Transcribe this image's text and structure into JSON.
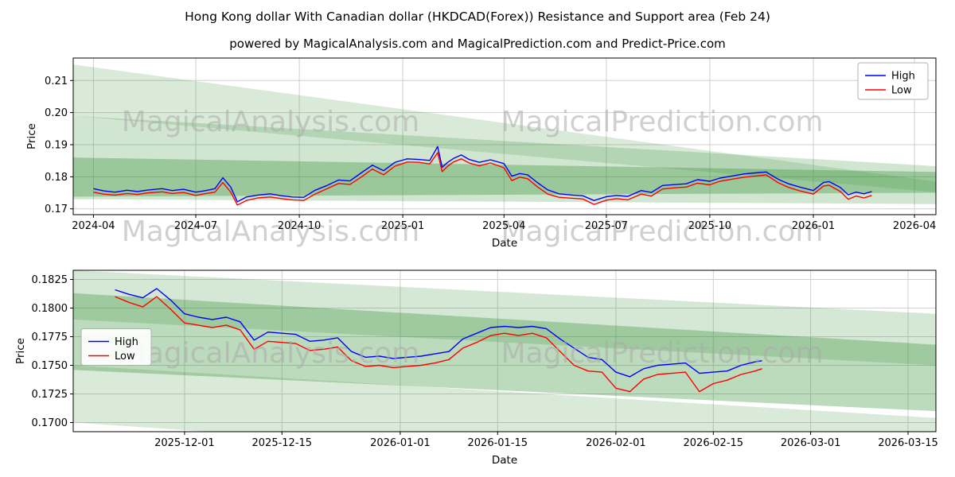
{
  "title": "Hong Kong dollar With Canadian dollar (HKDCAD(Forex)) Resistance and Support area (Feb 24)",
  "subtitle": "powered by MagicalAnalysis.com and MagicalPrediction.com and Predict-Price.com",
  "watermarks": {
    "left": "MagicalAnalysis.com",
    "right": "MagicalPrediction.com"
  },
  "colors": {
    "high": "#0000ff",
    "low": "#ff0000",
    "band": "#2e8b2e",
    "grid": "#cfcfcf",
    "watermark": "#aaaaaa",
    "axis": "#000000"
  },
  "chart_data": [
    {
      "type": "line",
      "xlabel": "Date",
      "ylabel": "Price",
      "x_range": [
        "2024-03-14",
        "2026-04-20"
      ],
      "y_range": [
        0.1682,
        0.217
      ],
      "grid": true,
      "legend_position": "upper right",
      "x_ticks": [
        {
          "v": "2024-04-01",
          "label": "2024-04"
        },
        {
          "v": "2024-07-01",
          "label": "2024-07"
        },
        {
          "v": "2024-10-01",
          "label": "2024-10"
        },
        {
          "v": "2025-01-01",
          "label": "2025-01"
        },
        {
          "v": "2025-04-01",
          "label": "2025-04"
        },
        {
          "v": "2025-07-01",
          "label": "2025-07"
        },
        {
          "v": "2025-10-01",
          "label": "2025-10"
        },
        {
          "v": "2026-01-01",
          "label": "2026-01"
        },
        {
          "v": "2026-04-01",
          "label": "2026-04"
        }
      ],
      "y_ticks": [
        {
          "v": 0.17,
          "label": "0.17"
        },
        {
          "v": 0.18,
          "label": "0.18"
        },
        {
          "v": 0.19,
          "label": "0.19"
        },
        {
          "v": 0.2,
          "label": "0.20"
        },
        {
          "v": 0.21,
          "label": "0.21"
        }
      ],
      "legend": [
        {
          "label": "High",
          "color": "#0000ff"
        },
        {
          "label": "Low",
          "color": "#ff0000"
        }
      ],
      "series": [
        {
          "name": "High",
          "color": "#0000ff",
          "x": [
            "2024-04-01",
            "2024-04-10",
            "2024-04-20",
            "2024-05-01",
            "2024-05-10",
            "2024-05-20",
            "2024-06-01",
            "2024-06-10",
            "2024-06-20",
            "2024-07-01",
            "2024-07-10",
            "2024-07-18",
            "2024-07-25",
            "2024-08-01",
            "2024-08-07",
            "2024-08-15",
            "2024-08-25",
            "2024-09-05",
            "2024-09-15",
            "2024-09-25",
            "2024-10-05",
            "2024-10-15",
            "2024-10-25",
            "2024-11-05",
            "2024-11-15",
            "2024-11-25",
            "2024-12-05",
            "2024-12-15",
            "2024-12-25",
            "2025-01-05",
            "2025-01-15",
            "2025-01-25",
            "2025-02-01",
            "2025-02-05",
            "2025-02-10",
            "2025-02-15",
            "2025-02-22",
            "2025-03-01",
            "2025-03-10",
            "2025-03-20",
            "2025-04-01",
            "2025-04-08",
            "2025-04-15",
            "2025-04-22",
            "2025-05-01",
            "2025-05-10",
            "2025-05-20",
            "2025-06-01",
            "2025-06-10",
            "2025-06-20",
            "2025-07-01",
            "2025-07-10",
            "2025-07-20",
            "2025-08-01",
            "2025-08-10",
            "2025-08-20",
            "2025-09-01",
            "2025-09-10",
            "2025-09-20",
            "2025-10-01",
            "2025-10-10",
            "2025-10-20",
            "2025-11-01",
            "2025-11-10",
            "2025-11-20",
            "2025-12-01",
            "2025-12-10",
            "2025-12-20",
            "2026-01-01",
            "2026-01-10",
            "2026-01-15",
            "2026-01-25",
            "2026-02-01",
            "2026-02-08",
            "2026-02-15",
            "2026-02-22"
          ],
          "values": [
            0.1763,
            0.1756,
            0.1752,
            0.1758,
            0.1754,
            0.1759,
            0.1763,
            0.1757,
            0.1761,
            0.1752,
            0.1757,
            0.1763,
            0.1797,
            0.1768,
            0.1722,
            0.1737,
            0.1743,
            0.1747,
            0.1741,
            0.1737,
            0.1736,
            0.1758,
            0.1772,
            0.179,
            0.1787,
            0.1812,
            0.1836,
            0.1819,
            0.1845,
            0.1856,
            0.1854,
            0.1851,
            0.1894,
            0.183,
            0.1845,
            0.1857,
            0.1868,
            0.1854,
            0.1845,
            0.1853,
            0.1841,
            0.1802,
            0.181,
            0.1806,
            0.1781,
            0.1759,
            0.1747,
            0.1743,
            0.1741,
            0.1726,
            0.1738,
            0.1742,
            0.1739,
            0.1757,
            0.1751,
            0.1773,
            0.1776,
            0.1778,
            0.1791,
            0.1786,
            0.1796,
            0.1802,
            0.1809,
            0.1812,
            0.1815,
            0.1792,
            0.1778,
            0.1768,
            0.1757,
            0.1782,
            0.1785,
            0.1767,
            0.1744,
            0.1752,
            0.1747,
            0.1754
          ]
        },
        {
          "name": "Low",
          "color": "#ff0000",
          "x": [
            "2024-04-01",
            "2024-04-10",
            "2024-04-20",
            "2024-05-01",
            "2024-05-10",
            "2024-05-20",
            "2024-06-01",
            "2024-06-10",
            "2024-06-20",
            "2024-07-01",
            "2024-07-10",
            "2024-07-18",
            "2024-07-25",
            "2024-08-01",
            "2024-08-07",
            "2024-08-15",
            "2024-08-25",
            "2024-09-05",
            "2024-09-15",
            "2024-09-25",
            "2024-10-05",
            "2024-10-15",
            "2024-10-25",
            "2024-11-05",
            "2024-11-15",
            "2024-11-25",
            "2024-12-05",
            "2024-12-15",
            "2024-12-25",
            "2025-01-05",
            "2025-01-15",
            "2025-01-25",
            "2025-02-01",
            "2025-02-05",
            "2025-02-10",
            "2025-02-15",
            "2025-02-22",
            "2025-03-01",
            "2025-03-10",
            "2025-03-20",
            "2025-04-01",
            "2025-04-08",
            "2025-04-15",
            "2025-04-22",
            "2025-05-01",
            "2025-05-10",
            "2025-05-20",
            "2025-06-01",
            "2025-06-10",
            "2025-06-20",
            "2025-07-01",
            "2025-07-10",
            "2025-07-20",
            "2025-08-01",
            "2025-08-10",
            "2025-08-20",
            "2025-09-01",
            "2025-09-10",
            "2025-09-20",
            "2025-10-01",
            "2025-10-10",
            "2025-10-20",
            "2025-11-01",
            "2025-11-10",
            "2025-11-20",
            "2025-12-01",
            "2025-12-10",
            "2025-12-20",
            "2026-01-01",
            "2026-01-10",
            "2026-01-15",
            "2026-01-25",
            "2026-02-01",
            "2026-02-08",
            "2026-02-15",
            "2026-02-22"
          ],
          "values": [
            0.1752,
            0.1746,
            0.1743,
            0.1748,
            0.1745,
            0.175,
            0.1753,
            0.1748,
            0.1751,
            0.1742,
            0.1748,
            0.1752,
            0.1782,
            0.1752,
            0.1712,
            0.1726,
            0.1734,
            0.1737,
            0.1732,
            0.1728,
            0.1726,
            0.1746,
            0.1762,
            0.1779,
            0.1776,
            0.1799,
            0.1824,
            0.1806,
            0.1833,
            0.1846,
            0.1845,
            0.184,
            0.1875,
            0.1816,
            0.1833,
            0.1846,
            0.1856,
            0.1843,
            0.1834,
            0.1843,
            0.1828,
            0.1788,
            0.1799,
            0.1794,
            0.1768,
            0.1746,
            0.1736,
            0.1733,
            0.1731,
            0.1714,
            0.1727,
            0.1732,
            0.1728,
            0.1746,
            0.174,
            0.1762,
            0.1766,
            0.1768,
            0.178,
            0.1775,
            0.1786,
            0.1792,
            0.1799,
            0.1802,
            0.1806,
            0.1781,
            0.1767,
            0.1756,
            0.1746,
            0.1771,
            0.1774,
            0.1754,
            0.173,
            0.174,
            0.1734,
            0.1742
          ]
        }
      ],
      "bands": [
        {
          "opacity": 0.18,
          "points": [
            [
              "2024-03-14",
              0.215
            ],
            [
              "2026-04-20",
              0.1785
            ],
            [
              "2026-04-20",
              0.1752
            ],
            [
              "2024-03-14",
              0.199
            ]
          ]
        },
        {
          "opacity": 0.22,
          "points": [
            [
              "2024-03-14",
              0.199
            ],
            [
              "2026-04-20",
              0.1833
            ],
            [
              "2026-04-20",
              0.1715
            ],
            [
              "2024-03-14",
              0.173
            ]
          ]
        },
        {
          "opacity": 0.33,
          "points": [
            [
              "2024-03-14",
              0.186
            ],
            [
              "2026-04-20",
              0.1815
            ],
            [
              "2026-04-20",
              0.175
            ],
            [
              "2024-03-14",
              0.1738
            ]
          ]
        }
      ]
    },
    {
      "type": "line",
      "xlabel": "Date",
      "ylabel": "Price",
      "x_range": [
        "2025-11-15",
        "2026-03-19"
      ],
      "y_range": [
        0.1692,
        0.1833
      ],
      "grid": true,
      "legend_position": "center left",
      "x_ticks": [
        {
          "v": "2025-12-01",
          "label": "2025-12-01"
        },
        {
          "v": "2025-12-15",
          "label": "2025-12-15"
        },
        {
          "v": "2026-01-01",
          "label": "2026-01-01"
        },
        {
          "v": "2026-01-15",
          "label": "2026-01-15"
        },
        {
          "v": "2026-02-01",
          "label": "2026-02-01"
        },
        {
          "v": "2026-02-15",
          "label": "2026-02-15"
        },
        {
          "v": "2026-03-01",
          "label": "2026-03-01"
        },
        {
          "v": "2026-03-15",
          "label": "2026-03-15"
        }
      ],
      "y_ticks": [
        {
          "v": 0.17,
          "label": "0.1700"
        },
        {
          "v": 0.1725,
          "label": "0.1725"
        },
        {
          "v": 0.175,
          "label": "0.1750"
        },
        {
          "v": 0.1775,
          "label": "0.1775"
        },
        {
          "v": 0.18,
          "label": "0.1800"
        },
        {
          "v": 0.1825,
          "label": "0.1825"
        }
      ],
      "legend": [
        {
          "label": "High",
          "color": "#0000ff"
        },
        {
          "label": "Low",
          "color": "#ff0000"
        }
      ],
      "series": [
        {
          "name": "High",
          "color": "#0000ff",
          "x": [
            "2025-11-21",
            "2025-11-23",
            "2025-11-25",
            "2025-11-27",
            "2025-11-29",
            "2025-12-01",
            "2025-12-03",
            "2025-12-05",
            "2025-12-07",
            "2025-12-09",
            "2025-12-11",
            "2025-12-13",
            "2025-12-15",
            "2025-12-17",
            "2025-12-19",
            "2025-12-21",
            "2025-12-23",
            "2025-12-25",
            "2025-12-27",
            "2025-12-29",
            "2025-12-31",
            "2026-01-02",
            "2026-01-04",
            "2026-01-06",
            "2026-01-08",
            "2026-01-10",
            "2026-01-12",
            "2026-01-14",
            "2026-01-16",
            "2026-01-18",
            "2026-01-20",
            "2026-01-22",
            "2026-01-24",
            "2026-01-26",
            "2026-01-28",
            "2026-01-30",
            "2026-02-01",
            "2026-02-03",
            "2026-02-05",
            "2026-02-07",
            "2026-02-09",
            "2026-02-11",
            "2026-02-13",
            "2026-02-15",
            "2026-02-17",
            "2026-02-19",
            "2026-02-21",
            "2026-02-22"
          ],
          "values": [
            0.1816,
            0.1812,
            0.1809,
            0.1817,
            0.1807,
            0.1795,
            0.1792,
            0.179,
            0.1792,
            0.1788,
            0.1772,
            0.1779,
            0.1778,
            0.1777,
            0.1771,
            0.1772,
            0.1774,
            0.1762,
            0.1757,
            0.1758,
            0.1756,
            0.1757,
            0.1758,
            0.176,
            0.1762,
            0.1773,
            0.1778,
            0.1783,
            0.1784,
            0.1783,
            0.1784,
            0.1782,
            0.1773,
            0.1765,
            0.1757,
            0.1755,
            0.1744,
            0.174,
            0.1747,
            0.175,
            0.1751,
            0.1752,
            0.1743,
            0.1744,
            0.1745,
            0.175,
            0.1753,
            0.1754
          ]
        },
        {
          "name": "Low",
          "color": "#ff0000",
          "x": [
            "2025-11-21",
            "2025-11-23",
            "2025-11-25",
            "2025-11-27",
            "2025-11-29",
            "2025-12-01",
            "2025-12-03",
            "2025-12-05",
            "2025-12-07",
            "2025-12-09",
            "2025-12-11",
            "2025-12-13",
            "2025-12-15",
            "2025-12-17",
            "2025-12-19",
            "2025-12-21",
            "2025-12-23",
            "2025-12-25",
            "2025-12-27",
            "2025-12-29",
            "2025-12-31",
            "2026-01-02",
            "2026-01-04",
            "2026-01-06",
            "2026-01-08",
            "2026-01-10",
            "2026-01-12",
            "2026-01-14",
            "2026-01-16",
            "2026-01-18",
            "2026-01-20",
            "2026-01-22",
            "2026-01-24",
            "2026-01-26",
            "2026-01-28",
            "2026-01-30",
            "2026-02-01",
            "2026-02-03",
            "2026-02-05",
            "2026-02-07",
            "2026-02-09",
            "2026-02-11",
            "2026-02-13",
            "2026-02-15",
            "2026-02-17",
            "2026-02-19",
            "2026-02-21",
            "2026-02-22"
          ],
          "values": [
            0.181,
            0.1805,
            0.1801,
            0.181,
            0.1799,
            0.1787,
            0.1785,
            0.1783,
            0.1785,
            0.1781,
            0.1764,
            0.1771,
            0.177,
            0.1769,
            0.1763,
            0.1764,
            0.1766,
            0.1754,
            0.1749,
            0.175,
            0.1748,
            0.1749,
            0.175,
            0.1752,
            0.1755,
            0.1765,
            0.177,
            0.1776,
            0.1778,
            0.1776,
            0.1778,
            0.1774,
            0.1762,
            0.175,
            0.1745,
            0.1744,
            0.173,
            0.1727,
            0.1738,
            0.1742,
            0.1743,
            0.1744,
            0.1727,
            0.1734,
            0.1737,
            0.1742,
            0.1745,
            0.1747
          ]
        }
      ],
      "bands": [
        {
          "opacity": 0.2,
          "points": [
            [
              "2025-11-15",
              0.1833
            ],
            [
              "2026-03-19",
              0.1795
            ],
            [
              "2026-03-19",
              0.175
            ],
            [
              "2025-11-15",
              0.179
            ]
          ]
        },
        {
          "opacity": 0.32,
          "points": [
            [
              "2025-11-15",
              0.1813
            ],
            [
              "2026-03-19",
              0.1768
            ],
            [
              "2026-03-19",
              0.171
            ],
            [
              "2025-11-15",
              0.1746
            ]
          ]
        },
        {
          "opacity": 0.18,
          "points": [
            [
              "2025-11-15",
              0.175
            ],
            [
              "2026-03-19",
              0.1704
            ],
            [
              "2026-03-19",
              0.165
            ],
            [
              "2025-11-15",
              0.17
            ]
          ]
        }
      ]
    }
  ]
}
